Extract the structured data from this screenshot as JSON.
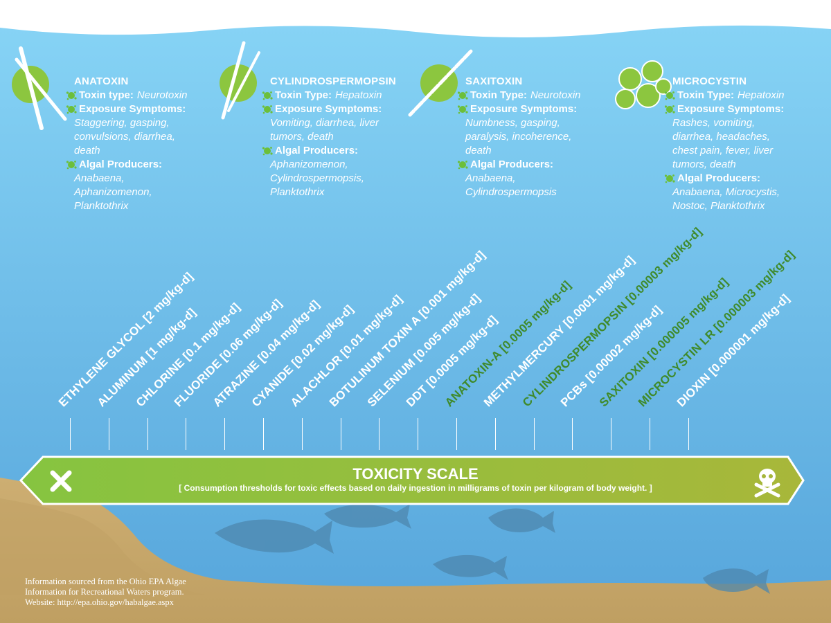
{
  "cards": [
    {
      "title": "ANATOXIN",
      "type_label": "Toxin type:",
      "type_value": "Neurotoxin",
      "symptoms_label": "Exposure Symptoms:",
      "symptoms_lines": [
        "Staggering, gasping,",
        "convulsions, diarrhea,",
        "death"
      ],
      "producers_label": "Algal Producers:",
      "producers_lines": [
        "Anabaena,",
        "Aphanizomenon,",
        "Planktothrix"
      ]
    },
    {
      "title": "CYLINDROSPERMOPSIN",
      "type_label": "Toxin Type:",
      "type_value": "Hepatoxin",
      "symptoms_label": "Exposure Symptoms:",
      "symptoms_lines": [
        "Vomiting, diarrhea, liver",
        "tumors, death"
      ],
      "producers_label": "Algal Producers:",
      "producers_lines": [
        "Aphanizomenon,",
        "Cylindrospermopsis,",
        "Planktothrix"
      ]
    },
    {
      "title": "SAXITOXIN",
      "type_label": "Toxin Type:",
      "type_value": "Neurotoxin",
      "symptoms_label": "Exposure Symptoms:",
      "symptoms_lines": [
        "Numbness, gasping,",
        "paralysis, incoherence,",
        "death"
      ],
      "producers_label": "Algal Producers:",
      "producers_lines": [
        "Anabaena,",
        "Cylindrospermopsis"
      ]
    },
    {
      "title": "MICROCYSTIN",
      "type_label": "Toxin Type:",
      "type_value": "Hepatoxin",
      "symptoms_label": "Exposure Symptoms:",
      "symptoms_lines": [
        "Rashes, vomiting,",
        "diarrhea, headaches,",
        "chest pain, fever, liver",
        "tumors, death"
      ],
      "producers_label": "Algal Producers:",
      "producers_lines": [
        "Anabaena, Microcystis,",
        "Nostoc, Planktothrix"
      ]
    }
  ],
  "substances": [
    {
      "label": "ETHYLENE GLYCOL [2 mg/kg-d]",
      "algal": false
    },
    {
      "label": "ALUMINUM [1 mg/kg-d]",
      "algal": false
    },
    {
      "label": "CHLORINE [0.1 mg/kg-d]",
      "algal": false
    },
    {
      "label": "FLUORIDE [0.06 mg/kg-d]",
      "algal": false
    },
    {
      "label": "ATRAZINE [0.04 mg/kg-d]",
      "algal": false
    },
    {
      "label": "CYANIDE [0.02 mg/kg-d]",
      "algal": false
    },
    {
      "label": "ALACHLOR [0.01 mg/kg-d]",
      "algal": false
    },
    {
      "label": "BOTULINUM TOXIN A [0.001 mg/kg-d]",
      "algal": false
    },
    {
      "label": "SELENIUM [0.005 mg/kg-d]",
      "algal": false
    },
    {
      "label": "DDT [0.0005 mg/kg-d]",
      "algal": false
    },
    {
      "label": "ANATOXIN-A [0.0005 mg/kg-d]",
      "algal": true
    },
    {
      "label": "METHYLMERCURY [0.0001 mg/kg-d]",
      "algal": false
    },
    {
      "label": "CYLINDROSPERMOPSIN [0.00003 mg/kg-d]",
      "algal": true
    },
    {
      "label": "PCBs [0.00002 mg/kg-d]",
      "algal": false
    },
    {
      "label": "SAXITOXIN [0.000005 mg/kg-d]",
      "algal": true
    },
    {
      "label": "MICROCYSTIN LR [0.000003 mg/kg-d]",
      "algal": true
    },
    {
      "label": "DIOXIN [0.000001 mg/kg-d]",
      "algal": false
    }
  ],
  "scale": {
    "title": "TOXICITY SCALE",
    "subtitle": "[ Consumption thresholds for toxic effects based on daily ingestion in milligrams of toxin per kilogram of body weight. ]",
    "left_icon": "x-icon",
    "right_icon": "skull-crossbones-icon"
  },
  "source_lines": [
    "Information sourced from the Ohio EPA Algae",
    "Information for Recreational Waters program.",
    "Website: http://epa.ohio.gov/habalgae.aspx"
  ],
  "colors": {
    "water_top": "#7ecff4",
    "water_bottom": "#5aa9de",
    "sand": "#c9a86a",
    "scale_left": "#8cc63f",
    "scale_right": "#a6b63a",
    "algal_label": "#3f8a2a",
    "accent_circle": "#8cc63f"
  }
}
